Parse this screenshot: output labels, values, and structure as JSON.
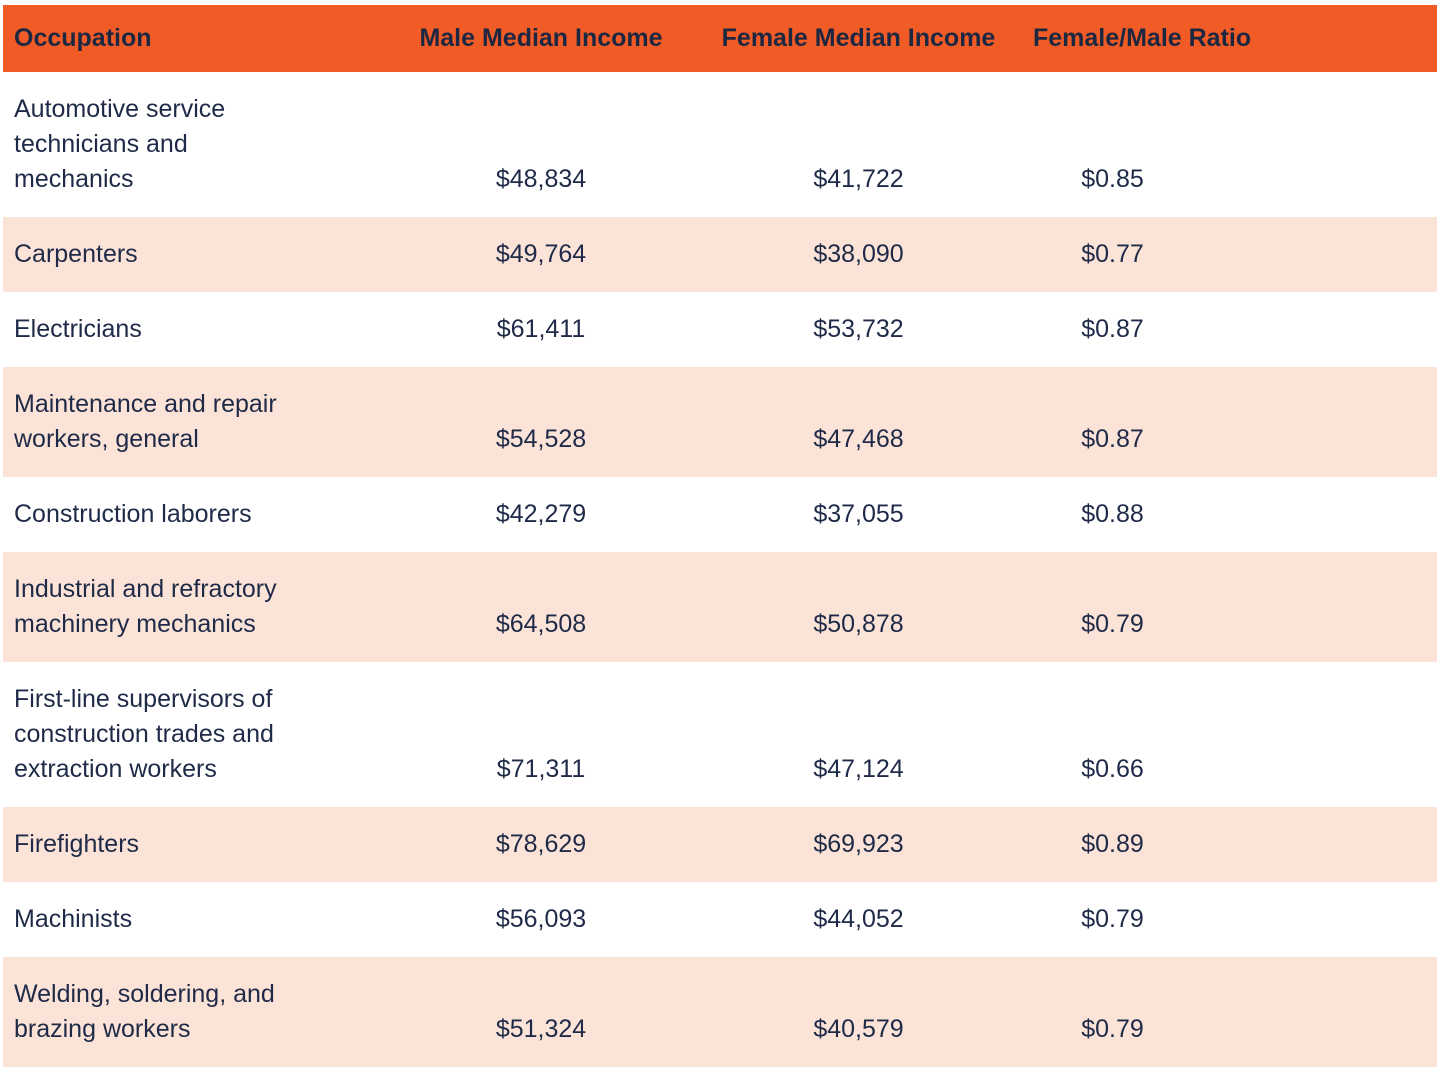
{
  "colors": {
    "header_bg": "#f15b25",
    "stripe_bg": "#fbe3d7",
    "row_bg": "#ffffff",
    "text": "#1e2a47"
  },
  "table": {
    "headers": [
      "Occupation",
      "Male Median Income",
      "Female Median Income",
      "Female/Male Ratio"
    ],
    "rows": [
      {
        "occupation": "Automotive service technicians and mechanics",
        "male": "$48,834",
        "female": "$41,722",
        "ratio": "$0.85"
      },
      {
        "occupation": "Carpenters",
        "male": "$49,764",
        "female": "$38,090",
        "ratio": "$0.77"
      },
      {
        "occupation": "Electricians",
        "male": "$61,411",
        "female": "$53,732",
        "ratio": "$0.87"
      },
      {
        "occupation": "Maintenance and repair workers, general",
        "male": "$54,528",
        "female": "$47,468",
        "ratio": "$0.87"
      },
      {
        "occupation": "Construction laborers",
        "male": "$42,279",
        "female": "$37,055",
        "ratio": "$0.88"
      },
      {
        "occupation": "Industrial and refractory machinery mechanics",
        "male": "$64,508",
        "female": "$50,878",
        "ratio": "$0.79"
      },
      {
        "occupation": "First-line supervisors of construction trades and extraction workers",
        "male": "$71,311",
        "female": "$47,124",
        "ratio": "$0.66"
      },
      {
        "occupation": "Firefighters",
        "male": "$78,629",
        "female": "$69,923",
        "ratio": "$0.89"
      },
      {
        "occupation": "Machinists",
        "male": "$56,093",
        "female": "$44,052",
        "ratio": "$0.79"
      },
      {
        "occupation": "Welding, soldering, and brazing workers",
        "male": "$51,324",
        "female": "$40,579",
        "ratio": "$0.79"
      }
    ]
  },
  "chart_data": {
    "type": "table",
    "columns": [
      "Occupation",
      "Male Median Income",
      "Female Median Income",
      "Female/Male Ratio"
    ],
    "rows": [
      [
        "Automotive service technicians and mechanics",
        48834,
        41722,
        0.85
      ],
      [
        "Carpenters",
        49764,
        38090,
        0.77
      ],
      [
        "Electricians",
        61411,
        53732,
        0.87
      ],
      [
        "Maintenance and repair workers, general",
        54528,
        47468,
        0.87
      ],
      [
        "Construction laborers",
        42279,
        37055,
        0.88
      ],
      [
        "Industrial and refractory machinery mechanics",
        64508,
        50878,
        0.79
      ],
      [
        "First-line supervisors of construction trades and extraction workers",
        71311,
        47124,
        0.66
      ],
      [
        "Firefighters",
        78629,
        69923,
        0.89
      ],
      [
        "Machinists",
        56093,
        44052,
        0.79
      ],
      [
        "Welding, soldering, and brazing workers",
        51324,
        40579,
        0.79
      ]
    ],
    "layout": {
      "header_style": "orange band, bold navy text",
      "row_striping": "white / light peach alternating",
      "value_alignment": "numeric columns centered, cells bottom-aligned"
    }
  }
}
